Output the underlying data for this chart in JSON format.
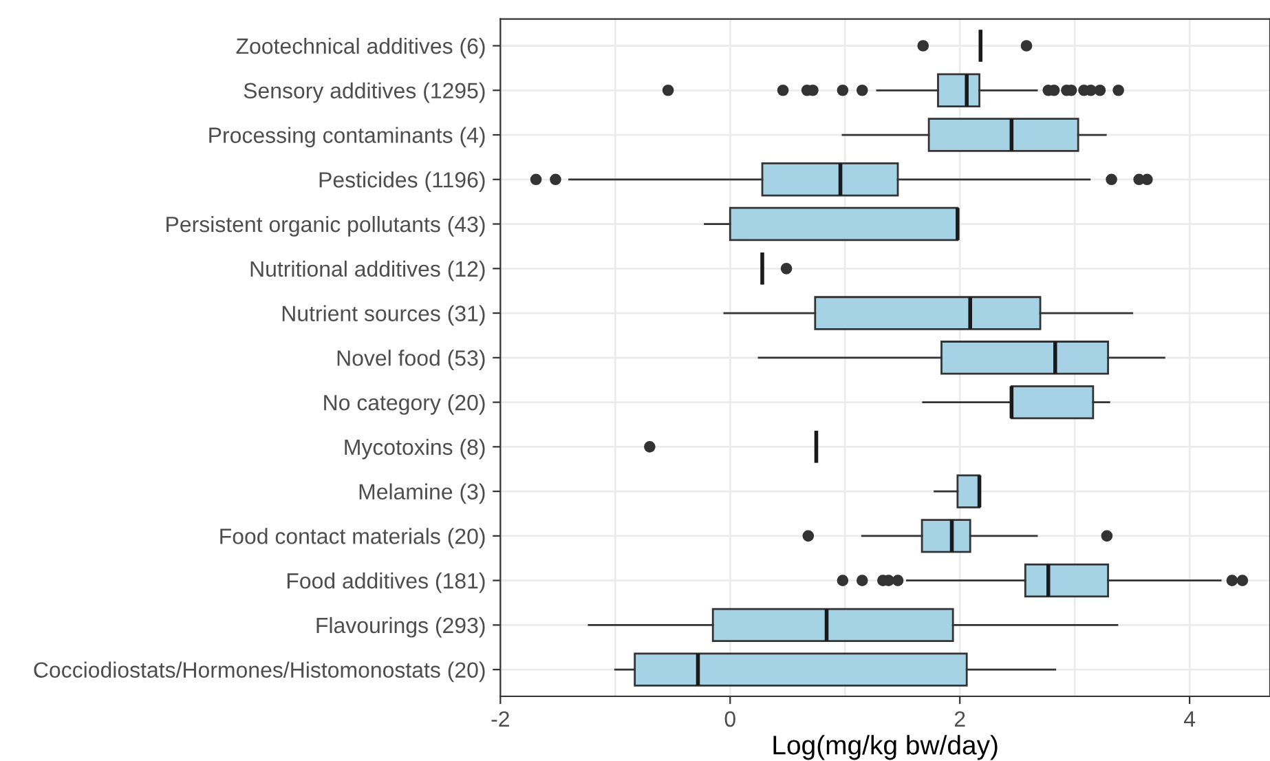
{
  "chart_data": {
    "type": "box",
    "orientation": "horizontal",
    "xlabel": "Log(mg/kg bw/day)",
    "categories": [
      "Zootechnical additives (6)",
      "Sensory additives (1295)",
      "Processing contaminants (4)",
      "Pesticides (1196)",
      "Persistent organic pollutants (43)",
      "Nutritional additives (12)",
      "Nutrient sources (31)",
      "Novel food (53)",
      "No category (20)",
      "Mycotoxins (8)",
      "Melamine (3)",
      "Food contact materials (20)",
      "Food additives (181)",
      "Flavourings (293)",
      "Cocciodiostats/Hormones/Histomonostats (20)"
    ],
    "colors": [
      "#1a1a1a",
      "#a6d2e6",
      "#a6d2e6",
      "#a6d2e6",
      "#a6d2e6",
      "#1a1a1a",
      "#a6d2e6",
      "#a6d2e6",
      "#a6d2e6",
      "#1a1a1a",
      "#a6d2e6",
      "#a6d2e6",
      "#a6d2e6",
      "#a6d2e6",
      "#a6d2e6"
    ],
    "boxes": [
      {
        "low": 2.18,
        "q1": 2.18,
        "median": 2.18,
        "q3": 2.18,
        "high": 2.18,
        "outliers": [
          1.68,
          2.58
        ]
      },
      {
        "low": 1.28,
        "q1": 1.81,
        "median": 2.06,
        "q3": 2.17,
        "high": 2.67,
        "outliers": [
          -0.54,
          0.46,
          0.67,
          0.72,
          0.98,
          1.15,
          2.77,
          2.82,
          2.93,
          2.97,
          3.08,
          3.14,
          3.22,
          3.38
        ]
      },
      {
        "low": 0.98,
        "q1": 1.73,
        "median": 2.45,
        "q3": 3.03,
        "high": 3.27
      },
      {
        "low": -1.4,
        "q1": 0.28,
        "median": 0.96,
        "q3": 1.46,
        "high": 3.13,
        "outliers": [
          -1.69,
          -1.52,
          3.32,
          3.56,
          3.63
        ]
      },
      {
        "low": -0.22,
        "q1": 0.0,
        "median": 1.98,
        "q3": 1.98,
        "high": 1.98
      },
      {
        "low": 0.28,
        "q1": 0.28,
        "median": 0.28,
        "q3": 0.28,
        "high": 0.28,
        "outliers": [
          0.49
        ]
      },
      {
        "low": -0.05,
        "q1": 0.74,
        "median": 2.09,
        "q3": 2.7,
        "high": 3.5
      },
      {
        "low": 0.25,
        "q1": 1.84,
        "median": 2.83,
        "q3": 3.29,
        "high": 3.78
      },
      {
        "low": 1.68,
        "q1": 2.45,
        "median": 2.45,
        "q3": 3.16,
        "high": 3.3
      },
      {
        "low": 0.75,
        "q1": 0.75,
        "median": 0.75,
        "q3": 0.75,
        "high": 0.75,
        "outliers": [
          -0.7
        ]
      },
      {
        "low": 1.78,
        "q1": 1.98,
        "median": 2.17,
        "q3": 2.17,
        "high": 2.17
      },
      {
        "low": 1.15,
        "q1": 1.67,
        "median": 1.93,
        "q3": 2.09,
        "high": 2.67,
        "outliers": [
          0.68,
          3.28
        ]
      },
      {
        "low": 1.54,
        "q1": 2.57,
        "median": 2.77,
        "q3": 3.29,
        "high": 4.27,
        "outliers": [
          0.98,
          1.15,
          1.33,
          1.38,
          1.46,
          4.37,
          4.46
        ]
      },
      {
        "low": -1.23,
        "q1": -0.15,
        "median": 0.84,
        "q3": 1.94,
        "high": 3.37
      },
      {
        "low": -1.0,
        "q1": -0.83,
        "median": -0.28,
        "q3": 2.06,
        "high": 2.83
      }
    ],
    "xlim": [
      -2.0,
      4.7
    ],
    "xticks": [
      -2,
      {
        "value": -1,
        "label": null
      },
      0,
      {
        "value": 1,
        "label": null
      },
      2,
      {
        "value": 3,
        "label": null
      },
      4
    ],
    "grid": true,
    "legend": false
  }
}
